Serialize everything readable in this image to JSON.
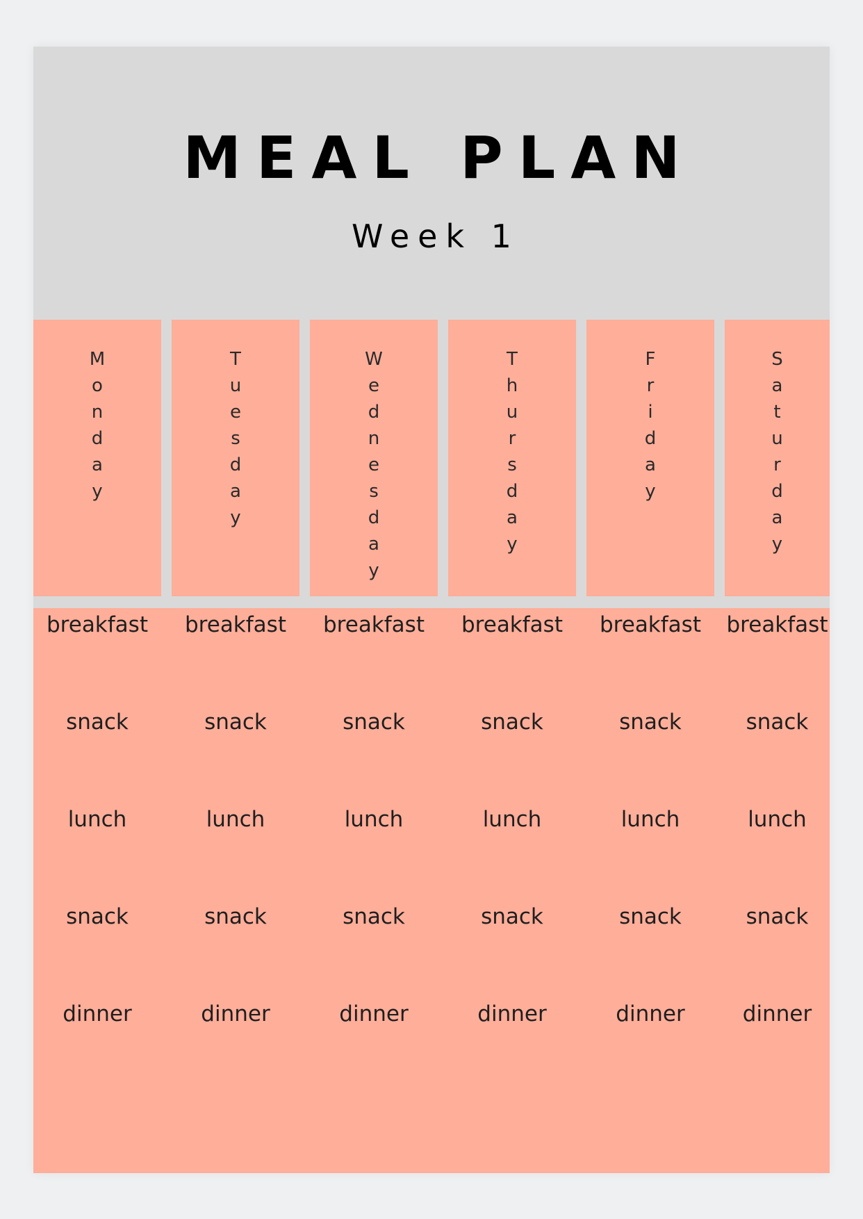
{
  "header": {
    "title": "MEAL PLAN",
    "subtitle": "Week 1"
  },
  "colors": {
    "page_background": "#eff0f2",
    "header_background": "#d9d9d9",
    "panel_fill": "#ffae99",
    "text": "#000000"
  },
  "days": [
    {
      "name": "Monday",
      "letters": [
        "M",
        "o",
        "n",
        "d",
        "a",
        "y"
      ],
      "meals": [
        "breakfast",
        "snack",
        "lunch",
        "snack",
        "dinner"
      ]
    },
    {
      "name": "Tuesday",
      "letters": [
        "T",
        "u",
        "e",
        "s",
        "d",
        "a",
        "y"
      ],
      "meals": [
        "breakfast",
        "snack",
        "lunch",
        "snack",
        "dinner"
      ]
    },
    {
      "name": "Wednesday",
      "letters": [
        "W",
        "e",
        "d",
        "n",
        "e",
        "s",
        "d",
        "a",
        "y"
      ],
      "meals": [
        "breakfast",
        "snack",
        "lunch",
        "snack",
        "dinner"
      ]
    },
    {
      "name": "Thursday",
      "letters": [
        "T",
        "h",
        "u",
        "r",
        "s",
        "d",
        "a",
        "y"
      ],
      "meals": [
        "breakfast",
        "snack",
        "lunch",
        "snack",
        "dinner"
      ]
    },
    {
      "name": "Friday",
      "letters": [
        "F",
        "r",
        "i",
        "d",
        "a",
        "y"
      ],
      "meals": [
        "breakfast",
        "snack",
        "lunch",
        "snack",
        "dinner"
      ]
    },
    {
      "name": "Saturday",
      "letters": [
        "S",
        "a",
        "t",
        "u",
        "r",
        "d",
        "a",
        "y"
      ],
      "meals": [
        "breakfast",
        "snack",
        "lunch",
        "snack",
        "dinner"
      ]
    }
  ]
}
